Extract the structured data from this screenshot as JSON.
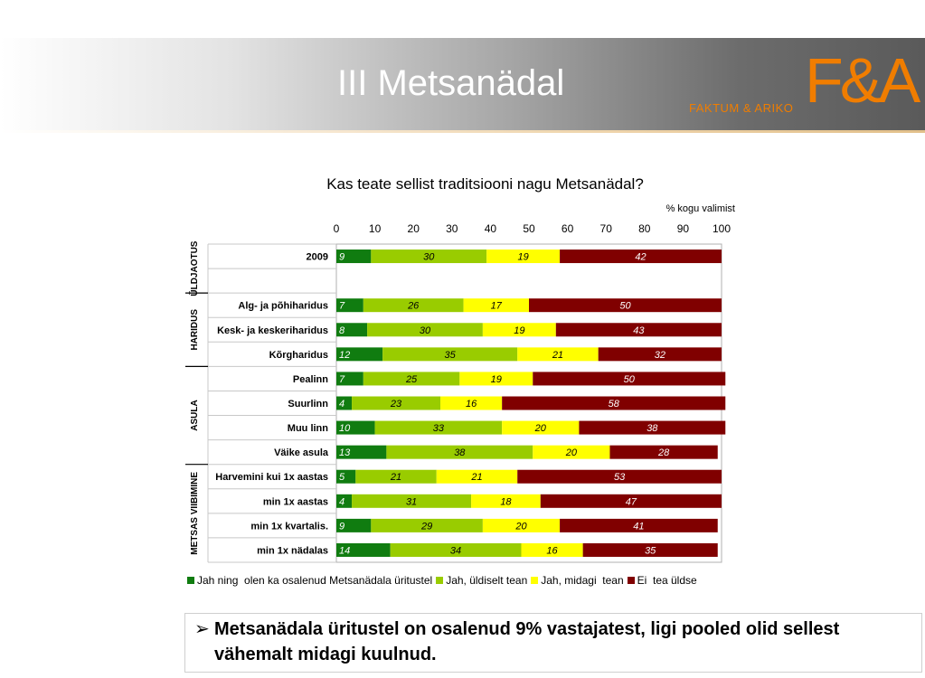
{
  "header": {
    "title": "III Metsanädal",
    "logo_text": "FAKTUM & ARIKO",
    "logo_mark": "F&A"
  },
  "chart_data": {
    "type": "bar",
    "stacked": true,
    "orientation": "horizontal",
    "title": "Kas teate sellist traditsiooni nagu Metsanädal?",
    "unit_label": "% kogu valimist",
    "xlim": [
      0,
      100
    ],
    "xticks": [
      0,
      10,
      20,
      30,
      40,
      50,
      60,
      70,
      80,
      90,
      100
    ],
    "legend_position": "bottom",
    "groups": [
      {
        "label": "ÜLDJAOTUS",
        "rows": [
          0,
          1
        ]
      },
      {
        "label": "HARIDUS",
        "rows": [
          2,
          4
        ]
      },
      {
        "label": "ASULA",
        "rows": [
          5,
          8
        ]
      },
      {
        "label": "METSAS VIIBIMINE",
        "rows": [
          9,
          12
        ]
      }
    ],
    "categories": [
      "2009",
      "",
      "Alg- ja põhiharidus",
      "Kesk- ja keskeriharidus",
      "Kõrgharidus",
      "Pealinn",
      "Suurlinn",
      "Muu linn",
      "Väike asula",
      "Harvemini kui 1x aastas",
      "min 1x aastas",
      "min 1x kvartalis.",
      "min 1x nädalas"
    ],
    "series": [
      {
        "name": "Jah ning  olen ka osalenud Metsanädala üritustel",
        "color": "#107c10",
        "values": [
          9,
          null,
          7,
          8,
          12,
          7,
          4,
          10,
          13,
          5,
          4,
          9,
          14
        ]
      },
      {
        "name": "Jah, üldiselt tean",
        "color": "#99cc00",
        "values": [
          30,
          null,
          26,
          30,
          35,
          25,
          23,
          33,
          38,
          21,
          31,
          29,
          34
        ]
      },
      {
        "name": "Jah, midagi  tean",
        "color": "#ffff00",
        "values": [
          19,
          null,
          17,
          19,
          21,
          19,
          16,
          20,
          20,
          21,
          18,
          20,
          16
        ]
      },
      {
        "name": "Ei  tea üldse",
        "color": "#800000",
        "values": [
          42,
          null,
          50,
          43,
          32,
          50,
          58,
          38,
          28,
          53,
          47,
          41,
          35
        ]
      }
    ]
  },
  "note": {
    "bullet": "➢",
    "text": "Metsanädala üritustel on osalenud 9% vastajatest, ligi pooled olid sellest vähemalt midagi kuulnud."
  }
}
